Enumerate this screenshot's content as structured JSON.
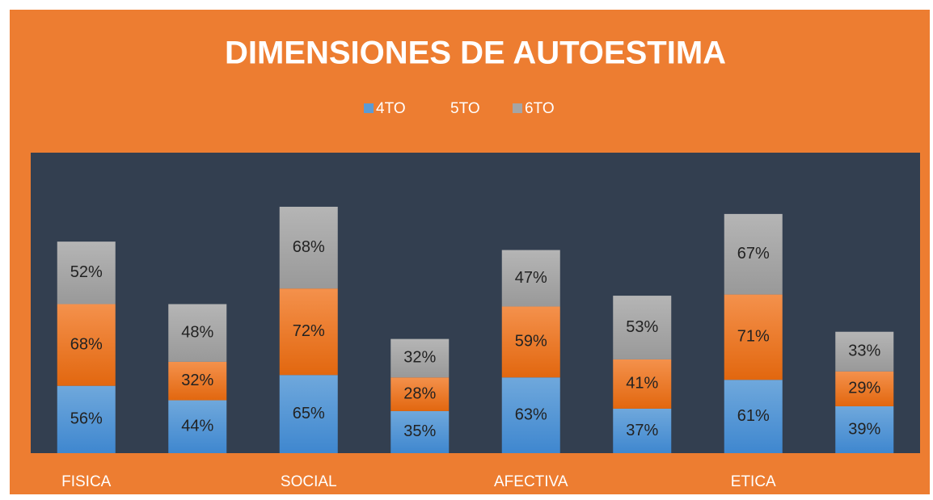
{
  "chart_data": {
    "type": "stacked_bar",
    "title": "DIMENSIONES DE AUTOESTIMA",
    "categories": [
      "FISICA",
      null,
      "SOCIAL",
      null,
      "AFECTIVA",
      null,
      "ETICA",
      null
    ],
    "series": [
      {
        "name": "4TO",
        "color": "#5B9BD5",
        "values": [
          56,
          44,
          65,
          35,
          63,
          37,
          61,
          39
        ],
        "value_labels": [
          "56%",
          "44%",
          "65%",
          "35%",
          "63%",
          "37%",
          "61%",
          "39%"
        ]
      },
      {
        "name": "5TO",
        "color": "#ED7D31",
        "values": [
          68,
          32,
          72,
          28,
          59,
          41,
          71,
          29
        ],
        "value_labels": [
          "68%",
          "32%",
          "72%",
          "28%",
          "59%",
          "41%",
          "71%",
          "29%"
        ]
      },
      {
        "name": "6TO",
        "color": "#A5A5A5",
        "values": [
          52,
          48,
          68,
          32,
          47,
          53,
          67,
          33
        ],
        "value_labels": [
          "52%",
          "48%",
          "68%",
          "32%",
          "47%",
          "53%",
          "67%",
          "33%"
        ]
      }
    ],
    "ylim": [
      0,
      250
    ],
    "legend": "top"
  }
}
